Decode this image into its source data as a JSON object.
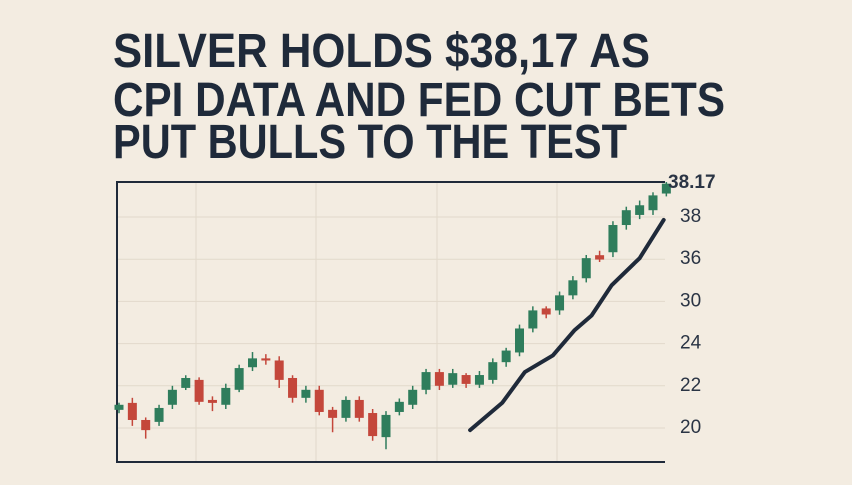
{
  "chart_data": {
    "type": "candlestick",
    "title": [
      "SILVER HOLDS $38,17 AS",
      "CPI DATA AND FED CUT BETS",
      "PUT BULLS TO THE TEST"
    ],
    "candles": {
      "open": [
        20.86,
        21.19,
        20.38,
        20.29,
        21.1,
        21.9,
        22.28,
        21.33,
        21.1,
        21.81,
        22.88,
        23.3,
        23.2,
        22.37,
        21.43,
        21.81,
        20.86,
        20.48,
        21.33,
        20.71,
        19.57,
        20.76,
        21.1,
        21.81,
        22.65,
        22.05,
        22.51,
        22.05,
        22.28,
        23.12,
        23.58,
        26.15,
        29.0,
        28.72,
        30.86,
        33.29,
        36.19,
        36.33,
        37.62,
        38.1,
        38.33,
        39.14
      ],
      "high": [
        21.2,
        21.43,
        20.5,
        21.1,
        22.0,
        22.5,
        22.4,
        21.5,
        22.1,
        23.0,
        23.6,
        23.5,
        23.4,
        22.5,
        22.0,
        22.0,
        21.0,
        21.5,
        21.5,
        20.9,
        20.8,
        21.4,
        22.0,
        22.8,
        22.8,
        22.8,
        22.6,
        22.7,
        23.3,
        23.8,
        26.7,
        29.3,
        29.3,
        31.4,
        33.6,
        36.2,
        36.4,
        37.8,
        38.5,
        38.8,
        39.2,
        39.7
      ],
      "low": [
        20.7,
        20.1,
        19.5,
        20.1,
        20.9,
        21.8,
        21.1,
        20.8,
        20.9,
        21.7,
        22.7,
        23.0,
        21.9,
        21.2,
        21.2,
        20.6,
        19.8,
        20.3,
        20.3,
        19.4,
        19.0,
        20.6,
        20.9,
        21.6,
        21.8,
        21.9,
        21.9,
        21.9,
        22.1,
        22.9,
        23.4,
        25.6,
        27.6,
        28.1,
        30.3,
        32.7,
        35.6,
        36.1,
        37.4,
        37.9,
        38.1,
        39.0
      ],
      "close": [
        21.1,
        20.38,
        19.9,
        20.95,
        21.81,
        22.37,
        21.24,
        21.19,
        21.9,
        22.84,
        23.3,
        23.2,
        22.28,
        21.43,
        21.81,
        20.76,
        20.48,
        21.33,
        20.48,
        19.62,
        20.62,
        21.24,
        21.81,
        22.65,
        22.0,
        22.6,
        22.09,
        22.51,
        23.12,
        23.67,
        26.15,
        28.72,
        28.14,
        30.86,
        33.0,
        36.05,
        35.95,
        37.62,
        38.33,
        38.57,
        39.05,
        39.62
      ]
    },
    "up_color": "#2f7d5c",
    "down_color": "#c4473b",
    "line": {
      "x": [
        26.3,
        28.7,
        30.4,
        32.5,
        34.1,
        35.4,
        36.9,
        39.0,
        40.8
      ],
      "values": [
        19.9,
        21.19,
        22.65,
        23.44,
        25.86,
        28.0,
        32.29,
        36.05,
        37.86
      ],
      "color": "#1f2a3a"
    },
    "ylim": [
      18.4,
      39.7
    ],
    "yticks": [
      20,
      22,
      24,
      30,
      36,
      38
    ],
    "last_price": 38.17,
    "grid": true
  }
}
